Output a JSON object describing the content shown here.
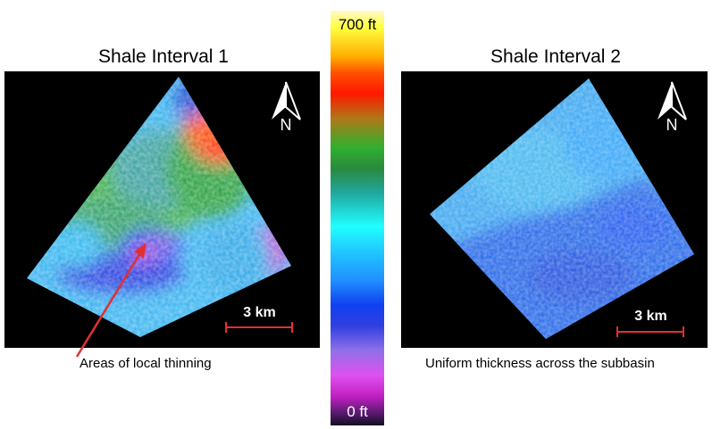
{
  "panels": {
    "left": {
      "title": "Shale Interval 1",
      "north_label": "N",
      "scale_label": "3 km"
    },
    "right": {
      "title": "Shale Interval 2",
      "north_label": "N",
      "scale_label": "3 km"
    }
  },
  "colorbar": {
    "top_label": "700 ft",
    "bottom_label": "0 ft"
  },
  "annotations": {
    "left_caption": "Areas of local thinning",
    "right_caption": "Uniform thickness across the subbasin"
  },
  "colors": {
    "annotation_arrow": "#e23030",
    "scale_bar": "#e23030"
  }
}
